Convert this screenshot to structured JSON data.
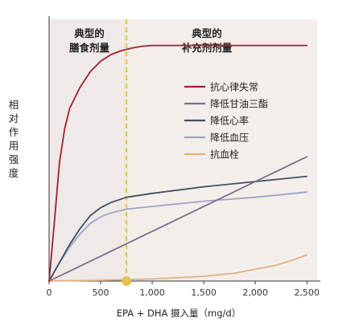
{
  "chart_data": {
    "type": "line",
    "ylabel": "相对作用强度",
    "xlabel": "EPA + DHA 摄入量（mg/d）",
    "xlim": [
      0,
      2600
    ],
    "ylim": [
      0,
      1.0
    ],
    "x_ticks": [
      0,
      500,
      1000,
      1500,
      2000,
      2500
    ],
    "x_tick_labels": [
      "0",
      "500",
      "1,000",
      "1,500",
      "2,000",
      "2,500"
    ],
    "zones": [
      {
        "label_line1": "典型的",
        "label_line2": "膳食剂量",
        "range": [
          0,
          750
        ],
        "color": "#efe9e7"
      },
      {
        "label_line1": "典型的",
        "label_line2": "补充剂剂量",
        "range": [
          750,
          2600
        ],
        "color": "#f4eeea"
      }
    ],
    "divider_x": 750,
    "divider_color": "#e6c24a",
    "series": [
      {
        "name": "抗心律失常",
        "color": "#9b2335",
        "x": [
          0,
          50,
          100,
          150,
          200,
          300,
          400,
          500,
          600,
          700,
          800,
          900,
          1000,
          1100,
          1200,
          1500,
          2000,
          2500
        ],
        "y": [
          0,
          0.22,
          0.45,
          0.58,
          0.66,
          0.74,
          0.8,
          0.84,
          0.865,
          0.88,
          0.89,
          0.897,
          0.9,
          0.9,
          0.9,
          0.9,
          0.9,
          0.9
        ]
      },
      {
        "name": "降低甘油三酯",
        "color": "#7a6e8c",
        "x": [
          0,
          2500
        ],
        "y": [
          0,
          0.475
        ]
      },
      {
        "name": "降低心率",
        "color": "#3e4f66",
        "x": [
          0,
          100,
          200,
          300,
          400,
          500,
          600,
          750,
          1000,
          1500,
          2000,
          2500
        ],
        "y": [
          0,
          0.07,
          0.14,
          0.2,
          0.25,
          0.28,
          0.3,
          0.32,
          0.335,
          0.36,
          0.38,
          0.4
        ]
      },
      {
        "name": "降低血压",
        "color": "#9aa6c8",
        "x": [
          0,
          100,
          200,
          300,
          400,
          500,
          600,
          750,
          1000,
          1500,
          2000,
          2500
        ],
        "y": [
          0,
          0.07,
          0.13,
          0.18,
          0.22,
          0.245,
          0.26,
          0.275,
          0.285,
          0.305,
          0.32,
          0.34
        ]
      },
      {
        "name": "抗血栓",
        "color": "#e0b080",
        "x": [
          0,
          500,
          1000,
          1500,
          1800,
          2000,
          2200,
          2400,
          2500
        ],
        "y": [
          0,
          0.003,
          0.008,
          0.018,
          0.03,
          0.045,
          0.06,
          0.085,
          0.1
        ]
      }
    ],
    "legend": {
      "placement": "top-right"
    },
    "highlight_point": {
      "x": 750,
      "y": 0,
      "color": "#e8c04a"
    },
    "grid": false
  }
}
